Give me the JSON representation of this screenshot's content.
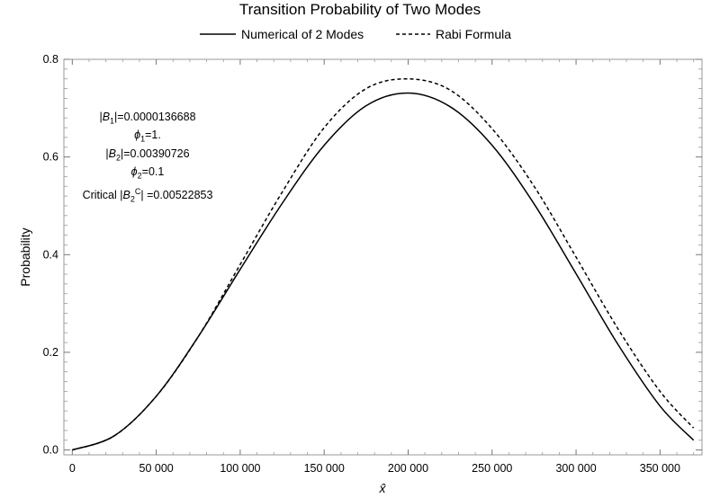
{
  "chart_data": {
    "type": "line",
    "title": "Transition Probability of Two Modes",
    "xlabel": "x̂",
    "ylabel": "Probability",
    "xlim": [
      -5000,
      375000
    ],
    "ylim": [
      -0.01,
      0.8
    ],
    "x_ticks": [
      0,
      50000,
      100000,
      150000,
      200000,
      250000,
      300000,
      350000
    ],
    "x_tick_labels": [
      "0",
      "50 000",
      "100 000",
      "150 000",
      "200 000",
      "250 000",
      "300 000",
      "350 000"
    ],
    "y_ticks": [
      0.0,
      0.2,
      0.4,
      0.6,
      0.8
    ],
    "y_tick_labels": [
      "0.0",
      "0.2",
      "0.4",
      "0.6",
      "0.8"
    ],
    "legend_position": "top",
    "grid": false,
    "series": [
      {
        "name": "Numerical of 2 Modes",
        "style": "solid",
        "color": "#000000",
        "x": [
          0,
          25000,
          50000,
          75000,
          100000,
          125000,
          150000,
          175000,
          200000,
          225000,
          250000,
          275000,
          300000,
          325000,
          350000,
          370000
        ],
        "y": [
          0.0,
          0.029,
          0.11,
          0.232,
          0.37,
          0.505,
          0.624,
          0.705,
          0.731,
          0.703,
          0.624,
          0.504,
          0.361,
          0.216,
          0.09,
          0.02
        ]
      },
      {
        "name": "Rabi Formula",
        "style": "dashed",
        "color": "#000000",
        "x": [
          0,
          25000,
          50000,
          75000,
          100000,
          125000,
          150000,
          175000,
          200000,
          225000,
          250000,
          275000,
          300000,
          325000,
          350000,
          370000
        ],
        "y": [
          0.0,
          0.029,
          0.11,
          0.232,
          0.38,
          0.528,
          0.66,
          0.74,
          0.76,
          0.737,
          0.658,
          0.54,
          0.395,
          0.248,
          0.12,
          0.045
        ]
      }
    ],
    "annotations": {
      "b1": "|B1|=0.0000136688",
      "phi1": "ϕ1=1.",
      "b2": "|B2|=0.00390726",
      "phi2": "ϕ2=0.1",
      "critical": "Critical |B2C| =0.00522853"
    }
  },
  "annot_parts": {
    "b1_pre": "|",
    "b1_var": "B",
    "b1_sub": "1",
    "b1_post": "|=0.0000136688",
    "phi1_var": "ϕ",
    "phi1_sub": "1",
    "phi1_post": "=1.",
    "b2_pre": "|",
    "b2_var": "B",
    "b2_sub": "2",
    "b2_post": "|=0.00390726",
    "phi2_var": "ϕ",
    "phi2_sub": "2",
    "phi2_post": "=0.1",
    "crit_pre": "Critical |",
    "crit_var": "B",
    "crit_sub": "2",
    "crit_sup": "C",
    "crit_post": "| =0.00522853"
  }
}
